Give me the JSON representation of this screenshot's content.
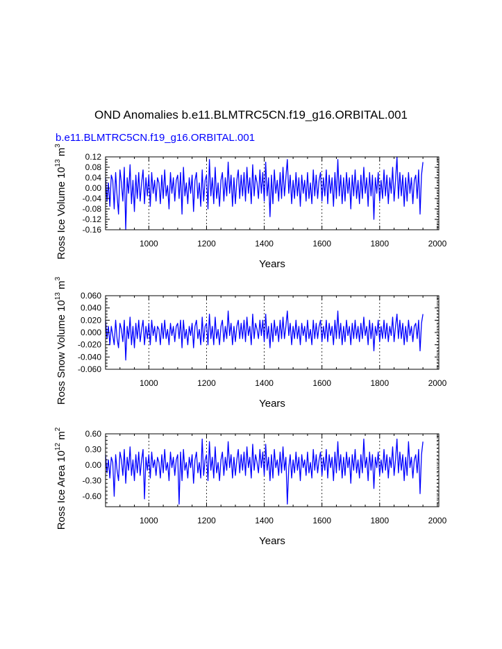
{
  "figure": {
    "title": "OND Anomalies b.e11.BLMTRC5CN.f19_g16.ORBITAL.001",
    "subtitle": "b.e11.BLMTRC5CN.f19_g16.ORBITAL.001",
    "line_color": "#0000ff",
    "grid_color": "#000000"
  },
  "chart_data": [
    {
      "type": "line",
      "title": "",
      "xlabel": "Years",
      "ylabel_main": "Ross Ice Volume 10",
      "ylabel_exp1": "13",
      "ylabel_unit": "m",
      "ylabel_exp2": "3",
      "xlim": [
        850,
        2005
      ],
      "ylim": [
        -0.16,
        0.12
      ],
      "xticks": [
        1000,
        1200,
        1400,
        1600,
        1800,
        2000
      ],
      "xtick_labels": [
        "1000",
        "1200",
        "1400",
        "1600",
        "1800",
        "2000"
      ],
      "yticks": [
        0.12,
        0.08,
        0.04,
        0.0,
        -0.04,
        -0.08,
        -0.12,
        -0.16
      ],
      "ytick_labels": [
        "0.12",
        "0.08",
        "0.04",
        "0.00",
        "-0.04",
        "-0.08",
        "-0.12",
        "-0.16"
      ],
      "grid": "vertical dashed at x ticks",
      "series": [
        {
          "name": "Ross Ice Volume anomaly",
          "x_start": 850,
          "x_step": 5,
          "values": [
            0.04,
            -0.05,
            0.02,
            -0.07,
            0.05,
            0.03,
            -0.08,
            0.06,
            -0.03,
            -0.1,
            0.07,
            0.02,
            -0.05,
            0.08,
            -0.16,
            0.04,
            -0.02,
            0.09,
            -0.06,
            0.03,
            -0.09,
            0.05,
            -0.04,
            0.06,
            -0.05,
            0.02,
            0.07,
            -0.06,
            0.04,
            -0.03,
            0.05,
            -0.07,
            0.06,
            -0.02,
            0.03,
            -0.05,
            0.04,
            0.02,
            -0.06,
            0.05,
            -0.04,
            0.07,
            -0.03,
            0.01,
            -0.08,
            0.06,
            -0.02,
            0.04,
            -0.05,
            0.03,
            0.05,
            -0.04,
            0.06,
            -0.1,
            0.08,
            -0.03,
            0.02,
            -0.06,
            0.04,
            -0.02,
            0.05,
            -0.09,
            0.03,
            0.06,
            -0.04,
            0.02,
            -0.07,
            0.07,
            -0.05,
            0.03,
            0.05,
            -0.08,
            0.11,
            -0.03,
            0.04,
            -0.06,
            0.08,
            -0.04,
            0.02,
            -0.07,
            0.03,
            0.06,
            -0.05,
            0.04,
            -0.03,
            0.1,
            -0.02,
            0.05,
            -0.07,
            0.04,
            -0.06,
            0.03,
            0.07,
            -0.04,
            0.05,
            -0.03,
            0.06,
            -0.05,
            0.08,
            -0.02,
            0.04,
            -0.06,
            0.09,
            -0.03,
            0.05,
            0.02,
            -0.04,
            0.07,
            -0.02,
            0.06,
            -0.05,
            0.1,
            -0.03,
            0.04,
            -0.11,
            0.05,
            -0.06,
            0.07,
            -0.02,
            0.03,
            -0.05,
            0.06,
            -0.04,
            0.08,
            -0.03,
            0.04,
            0.11,
            -0.02,
            0.05,
            -0.06,
            0.03,
            -0.04,
            0.06,
            -0.03,
            0.04,
            -0.07,
            0.05,
            -0.02,
            0.03,
            -0.05,
            0.06,
            -0.04,
            0.02,
            -0.06,
            0.07,
            -0.03,
            0.05,
            -0.04,
            0.03,
            0.06,
            -0.05,
            0.04,
            -0.03,
            0.07,
            -0.06,
            0.05,
            -0.02,
            0.04,
            -0.07,
            0.06,
            -0.04,
            0.11,
            -0.03,
            0.05,
            -0.06,
            0.04,
            -0.05,
            0.06,
            -0.02,
            0.04,
            -0.08,
            0.05,
            -0.03,
            0.07,
            -0.04,
            0.03,
            -0.06,
            0.05,
            -0.04,
            0.08,
            -0.02,
            0.04,
            -0.07,
            0.06,
            -0.03,
            0.05,
            -0.12,
            0.04,
            -0.02,
            0.06,
            -0.05,
            0.03,
            -0.04,
            0.07,
            -0.03,
            0.05,
            -0.06,
            0.04,
            -0.02,
            0.08,
            -0.05,
            0.03,
            0.12,
            -0.04,
            0.06,
            -0.03,
            0.05,
            -0.07,
            0.04,
            -0.05,
            0.06,
            -0.02,
            0.04,
            -0.06,
            0.03,
            0.05,
            -0.04,
            0.07,
            -0.1,
            0.05,
            0.1
          ]
        }
      ]
    },
    {
      "type": "line",
      "title": "",
      "xlabel": "Years",
      "ylabel_main": "Ross Snow Volume 10",
      "ylabel_exp1": "13",
      "ylabel_unit": "m",
      "ylabel_exp2": "3",
      "xlim": [
        850,
        2005
      ],
      "ylim": [
        -0.06,
        0.06
      ],
      "xticks": [
        1000,
        1200,
        1400,
        1600,
        1800,
        2000
      ],
      "xtick_labels": [
        "1000",
        "1200",
        "1400",
        "1600",
        "1800",
        "2000"
      ],
      "yticks": [
        0.06,
        0.04,
        0.02,
        0.0,
        -0.02,
        -0.04,
        -0.06
      ],
      "ytick_labels": [
        "0.060",
        "0.040",
        "0.020",
        "0.000",
        "-0.020",
        "-0.040",
        "-0.060"
      ],
      "grid": "vertical dashed at x ticks",
      "series": [
        {
          "name": "Ross Snow Volume anomaly",
          "x_start": 850,
          "x_step": 5,
          "values": [
            0.02,
            -0.01,
            0.01,
            -0.02,
            0.01,
            -0.005,
            -0.02,
            0.02,
            -0.01,
            -0.025,
            0.015,
            0.005,
            -0.015,
            0.02,
            -0.045,
            0.01,
            -0.01,
            0.025,
            -0.02,
            0.01,
            -0.025,
            0.015,
            -0.01,
            0.02,
            -0.015,
            0.005,
            0.02,
            -0.02,
            0.01,
            -0.01,
            0.015,
            -0.02,
            0.02,
            -0.005,
            0.01,
            -0.015,
            0.01,
            0.005,
            -0.02,
            0.015,
            -0.01,
            0.02,
            -0.01,
            0.005,
            -0.02,
            0.015,
            -0.005,
            0.01,
            -0.015,
            0.01,
            0.015,
            -0.01,
            0.02,
            -0.025,
            0.02,
            -0.01,
            0.005,
            -0.02,
            0.01,
            -0.005,
            0.015,
            -0.025,
            0.01,
            0.02,
            -0.01,
            0.005,
            -0.02,
            0.025,
            -0.015,
            0.01,
            0.015,
            -0.02,
            0.03,
            -0.01,
            0.01,
            -0.02,
            0.025,
            -0.01,
            0.005,
            -0.02,
            0.01,
            0.02,
            -0.015,
            0.01,
            -0.01,
            0.035,
            -0.005,
            0.015,
            -0.02,
            0.01,
            -0.015,
            0.01,
            0.02,
            -0.01,
            0.015,
            -0.01,
            0.02,
            -0.015,
            0.025,
            -0.005,
            0.01,
            -0.02,
            0.03,
            -0.01,
            0.015,
            0.005,
            -0.01,
            0.02,
            -0.005,
            0.02,
            -0.015,
            0.03,
            -0.01,
            0.01,
            -0.025,
            0.015,
            -0.015,
            0.02,
            -0.005,
            0.01,
            -0.015,
            0.02,
            -0.01,
            0.025,
            -0.01,
            0.01,
            0.035,
            -0.005,
            0.015,
            -0.02,
            0.01,
            -0.01,
            0.02,
            -0.01,
            0.01,
            -0.02,
            0.015,
            -0.005,
            0.01,
            -0.015,
            0.02,
            -0.01,
            0.005,
            -0.02,
            0.02,
            -0.01,
            0.015,
            -0.01,
            0.01,
            0.02,
            -0.015,
            0.01,
            -0.01,
            0.02,
            -0.015,
            0.015,
            -0.005,
            0.01,
            -0.02,
            0.02,
            -0.01,
            0.035,
            -0.01,
            0.015,
            -0.02,
            0.01,
            -0.015,
            0.02,
            -0.005,
            0.01,
            -0.02,
            0.015,
            -0.01,
            0.02,
            -0.01,
            0.01,
            -0.015,
            0.015,
            -0.01,
            0.025,
            -0.005,
            0.01,
            -0.02,
            0.02,
            -0.01,
            0.015,
            -0.03,
            0.01,
            -0.005,
            0.02,
            -0.015,
            0.01,
            -0.01,
            0.02,
            -0.01,
            0.015,
            -0.015,
            0.01,
            -0.005,
            0.025,
            -0.015,
            0.01,
            0.03,
            -0.01,
            0.02,
            -0.01,
            0.015,
            -0.02,
            0.01,
            -0.015,
            0.02,
            -0.005,
            0.01,
            -0.015,
            0.01,
            0.015,
            -0.01,
            0.02,
            -0.03,
            0.015,
            0.03
          ]
        }
      ]
    },
    {
      "type": "line",
      "title": "",
      "xlabel": "Years",
      "ylabel_main": "Ross Ice Area 10",
      "ylabel_exp1": "12",
      "ylabel_unit": "m",
      "ylabel_exp2": "2",
      "xlim": [
        850,
        2005
      ],
      "ylim": [
        -0.8,
        0.6
      ],
      "xticks": [
        1000,
        1200,
        1400,
        1600,
        1800,
        2000
      ],
      "xtick_labels": [
        "1000",
        "1200",
        "1400",
        "1600",
        "1800",
        "2000"
      ],
      "yticks": [
        0.6,
        0.3,
        0.0,
        -0.3,
        -0.6
      ],
      "ytick_labels": [
        "0.60",
        "0.30",
        "0.00",
        "-0.30",
        "-0.60"
      ],
      "grid": "vertical dashed at x ticks",
      "series": [
        {
          "name": "Ross Ice Area anomaly",
          "x_start": 850,
          "x_step": 5,
          "values": [
            0.2,
            -0.15,
            0.1,
            -0.25,
            0.15,
            0.05,
            -0.6,
            0.2,
            -0.1,
            -0.3,
            0.25,
            0.1,
            -0.2,
            0.3,
            -0.35,
            0.15,
            -0.1,
            0.35,
            -0.2,
            0.1,
            -0.3,
            0.2,
            -0.15,
            0.25,
            -0.2,
            0.1,
            0.3,
            -0.65,
            0.15,
            -0.1,
            0.2,
            -0.25,
            0.25,
            -0.05,
            0.1,
            -0.2,
            0.15,
            0.05,
            -0.25,
            0.2,
            -0.15,
            0.3,
            -0.1,
            0.05,
            -0.3,
            0.25,
            -0.05,
            0.15,
            -0.2,
            0.1,
            0.2,
            -0.75,
            0.25,
            -0.3,
            0.3,
            -0.1,
            0.05,
            -0.25,
            0.15,
            -0.05,
            0.2,
            -0.35,
            0.1,
            0.25,
            -0.15,
            0.05,
            -0.25,
            0.5,
            -0.2,
            0.1,
            0.2,
            -0.3,
            0.45,
            -0.1,
            0.15,
            -0.25,
            0.35,
            -0.15,
            0.05,
            -0.3,
            0.1,
            0.25,
            -0.2,
            0.15,
            -0.1,
            0.45,
            -0.05,
            0.2,
            -0.25,
            0.15,
            -0.2,
            0.1,
            0.3,
            -0.15,
            0.2,
            -0.1,
            0.25,
            -0.2,
            0.35,
            -0.05,
            0.15,
            -0.25,
            0.4,
            -0.1,
            0.2,
            0.05,
            -0.15,
            0.3,
            -0.05,
            0.25,
            -0.2,
            0.4,
            -0.1,
            0.15,
            -0.3,
            0.2,
            -0.25,
            0.3,
            -0.05,
            0.1,
            -0.2,
            0.25,
            -0.15,
            0.35,
            -0.1,
            0.15,
            -0.75,
            -0.05,
            0.2,
            -0.25,
            0.1,
            -0.15,
            0.25,
            -0.1,
            0.15,
            -0.3,
            0.2,
            -0.05,
            0.1,
            -0.2,
            0.25,
            -0.15,
            0.05,
            -0.25,
            0.3,
            -0.1,
            0.2,
            -0.15,
            0.1,
            0.25,
            -0.2,
            0.15,
            -0.1,
            0.3,
            -0.25,
            0.2,
            -0.05,
            0.15,
            -0.3,
            0.25,
            -0.15,
            0.45,
            -0.1,
            0.2,
            -0.25,
            0.15,
            -0.2,
            0.25,
            -0.05,
            0.15,
            -0.35,
            0.2,
            -0.1,
            0.3,
            -0.15,
            0.1,
            -0.25,
            0.2,
            -0.15,
            0.5,
            -0.05,
            0.15,
            -0.3,
            0.25,
            -0.1,
            0.2,
            -0.45,
            0.15,
            -0.05,
            0.25,
            -0.2,
            0.1,
            -0.15,
            0.3,
            -0.1,
            0.2,
            -0.25,
            0.15,
            -0.05,
            0.35,
            -0.2,
            0.1,
            0.5,
            -0.15,
            0.25,
            -0.1,
            0.2,
            -0.3,
            0.15,
            -0.2,
            0.45,
            -0.05,
            0.15,
            -0.25,
            0.1,
            0.2,
            -0.15,
            0.3,
            -0.55,
            0.2,
            0.45
          ]
        }
      ]
    }
  ]
}
